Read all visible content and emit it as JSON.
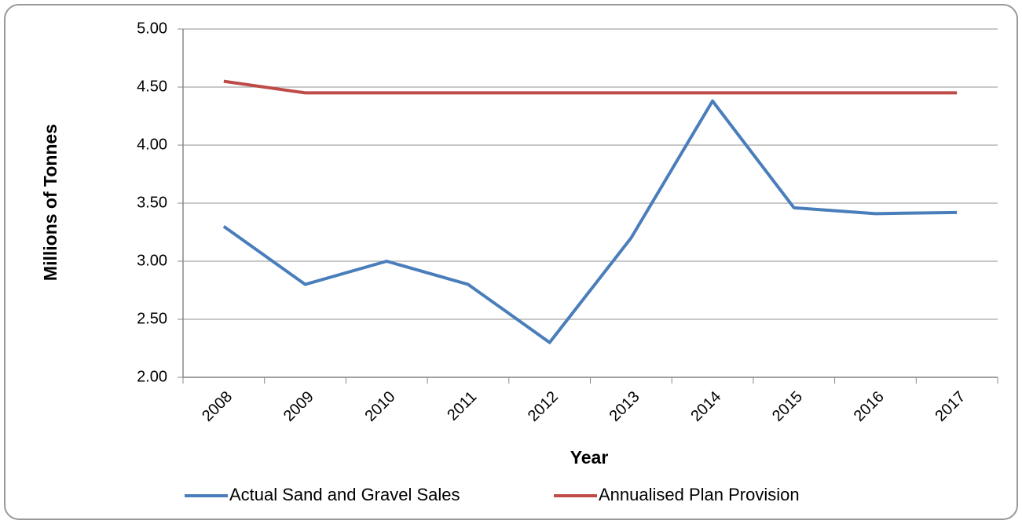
{
  "chart_data": {
    "type": "line",
    "xlabel": "Year",
    "ylabel": "Millions of Tonnes",
    "categories": [
      "2008",
      "2009",
      "2010",
      "2011",
      "2012",
      "2013",
      "2014",
      "2015",
      "2016",
      "2017"
    ],
    "series": [
      {
        "name": "Actual Sand and Gravel Sales",
        "color": "#4a7ebb",
        "values": [
          3.3,
          2.8,
          3.0,
          2.8,
          2.3,
          3.2,
          4.38,
          3.46,
          3.41,
          3.42
        ]
      },
      {
        "name": "Annualised Plan Provision",
        "color": "#be4b48",
        "values": [
          4.55,
          4.45,
          4.45,
          4.45,
          4.45,
          4.45,
          4.45,
          4.45,
          4.45,
          4.45
        ]
      }
    ],
    "ylim": [
      2,
      5
    ],
    "yticks": [
      {
        "value": 2,
        "label": "2.00"
      },
      {
        "value": 2.5,
        "label": "2.50"
      },
      {
        "value": 3,
        "label": "3.00"
      },
      {
        "value": 3.5,
        "label": "3.50"
      },
      {
        "value": 4,
        "label": "4.00"
      },
      {
        "value": 4.5,
        "label": "4.50"
      },
      {
        "value": 5,
        "label": "5.00"
      }
    ],
    "grid": true,
    "legend": "bottom"
  }
}
